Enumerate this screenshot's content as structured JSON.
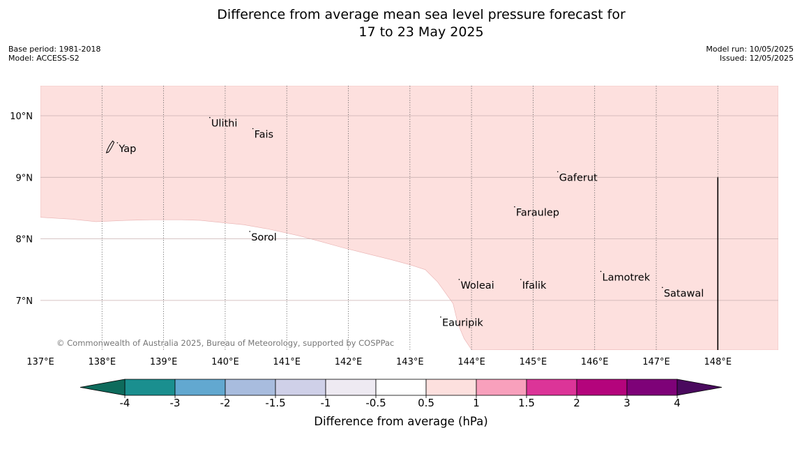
{
  "title": {
    "line1": "Difference from average mean sea level pressure forecast for",
    "line2": "17 to 23 May 2025"
  },
  "meta_left": {
    "base_period": "Base period: 1981-2018",
    "model": "Model: ACCESS-S2"
  },
  "meta_right": {
    "model_run": "Model run: 10/05/2025",
    "issued": "Issued: 12/05/2025"
  },
  "map": {
    "lon_range": [
      137,
      149
    ],
    "lat_range": [
      6.2,
      10.5
    ],
    "lon_labels": [
      "137°E",
      "138°E",
      "139°E",
      "140°E",
      "141°E",
      "142°E",
      "143°E",
      "144°E",
      "145°E",
      "146°E",
      "147°E",
      "148°E"
    ],
    "lat_labels": [
      "7°N",
      "8°N",
      "9°N",
      "10°N"
    ],
    "fill_color": "#fde0de",
    "positive_region_boundary": [
      [
        137.0,
        8.35
      ],
      [
        137.5,
        8.32
      ],
      [
        137.9,
        8.28
      ],
      [
        138.4,
        8.3
      ],
      [
        138.8,
        8.31
      ],
      [
        139.3,
        8.31
      ],
      [
        139.6,
        8.3
      ],
      [
        139.9,
        8.27
      ],
      [
        140.3,
        8.23
      ],
      [
        140.7,
        8.16
      ],
      [
        141.2,
        8.05
      ],
      [
        141.5,
        7.97
      ],
      [
        141.9,
        7.86
      ],
      [
        142.3,
        7.76
      ],
      [
        142.7,
        7.66
      ],
      [
        143.0,
        7.58
      ],
      [
        143.25,
        7.5
      ],
      [
        143.45,
        7.3
      ],
      [
        143.7,
        6.95
      ],
      [
        143.78,
        6.62
      ],
      [
        143.88,
        6.38
      ],
      [
        144.0,
        6.2
      ]
    ],
    "places": [
      {
        "name": "Yap",
        "lon": 138.25,
        "lat": 9.47
      },
      {
        "name": "Ulithi",
        "lon": 139.75,
        "lat": 9.88
      },
      {
        "name": "Fais",
        "lon": 140.45,
        "lat": 9.7
      },
      {
        "name": "Gaferut",
        "lon": 145.4,
        "lat": 9.0
      },
      {
        "name": "Faraulep",
        "lon": 144.7,
        "lat": 8.43
      },
      {
        "name": "Sorol",
        "lon": 140.4,
        "lat": 8.03
      },
      {
        "name": "Woleai",
        "lon": 143.8,
        "lat": 7.25
      },
      {
        "name": "Ifalik",
        "lon": 144.8,
        "lat": 7.25
      },
      {
        "name": "Lamotrek",
        "lon": 146.1,
        "lat": 7.38
      },
      {
        "name": "Satawal",
        "lon": 147.1,
        "lat": 7.12
      },
      {
        "name": "Eauripik",
        "lon": 143.5,
        "lat": 6.64
      }
    ],
    "copyright": "© Commonwealth of Australia 2025, Bureau of Meteorology, supported by COSPPac"
  },
  "colorbar": {
    "label": "Difference from average (hPa)",
    "ticks": [
      "-4",
      "-3",
      "-2",
      "-1.5",
      "-1",
      "-0.5",
      "0.5",
      "1",
      "1.5",
      "2",
      "3",
      "4"
    ],
    "under_color": "#0e6b5c",
    "over_color": "#4a0a5e",
    "colors": [
      "#1a8f8f",
      "#62a8d0",
      "#a8bcde",
      "#cfd0e8",
      "#eeeaf2",
      "#ffffff",
      "#fde0de",
      "#f8a0bc",
      "#dc3498",
      "#b4047c",
      "#7e0278"
    ]
  }
}
